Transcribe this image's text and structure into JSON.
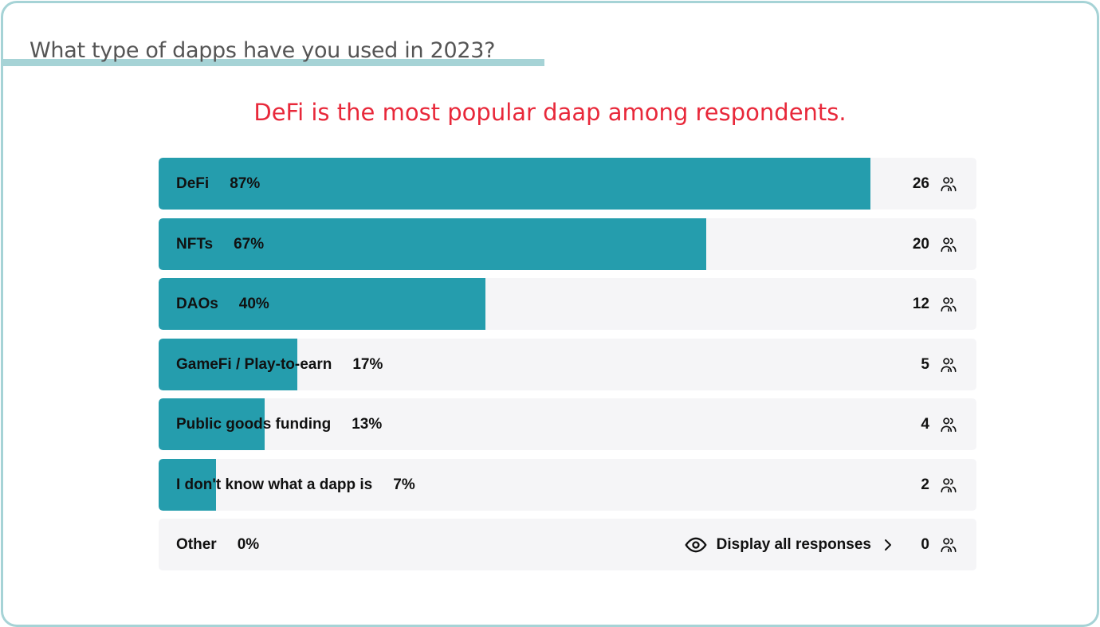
{
  "question": "What type of dapps have you used in 2023?",
  "headline": "DeFi is the most popular daap among respondents.",
  "colors": {
    "bar": "#259dad",
    "track": "#f5f5f7",
    "headline": "#e8283a",
    "accent": "#a6d3d6"
  },
  "display_all_label": "Display all responses",
  "chart_data": {
    "type": "bar",
    "orientation": "horizontal",
    "title": "What type of dapps have you used in 2023?",
    "subtitle": "DeFi is the most popular daap among respondents.",
    "categories": [
      "DeFi",
      "NFTs",
      "DAOs",
      "GameFi / Play-to-earn",
      "Public goods funding",
      "I don't know what a dapp is",
      "Other"
    ],
    "values": [
      87,
      67,
      40,
      17,
      13,
      7,
      0
    ],
    "value_labels": [
      "87%",
      "67%",
      "40%",
      "17%",
      "13%",
      "7%",
      "0%"
    ],
    "counts": [
      26,
      20,
      12,
      5,
      4,
      2,
      0
    ],
    "xlim": [
      0,
      100
    ],
    "unit": "%"
  }
}
